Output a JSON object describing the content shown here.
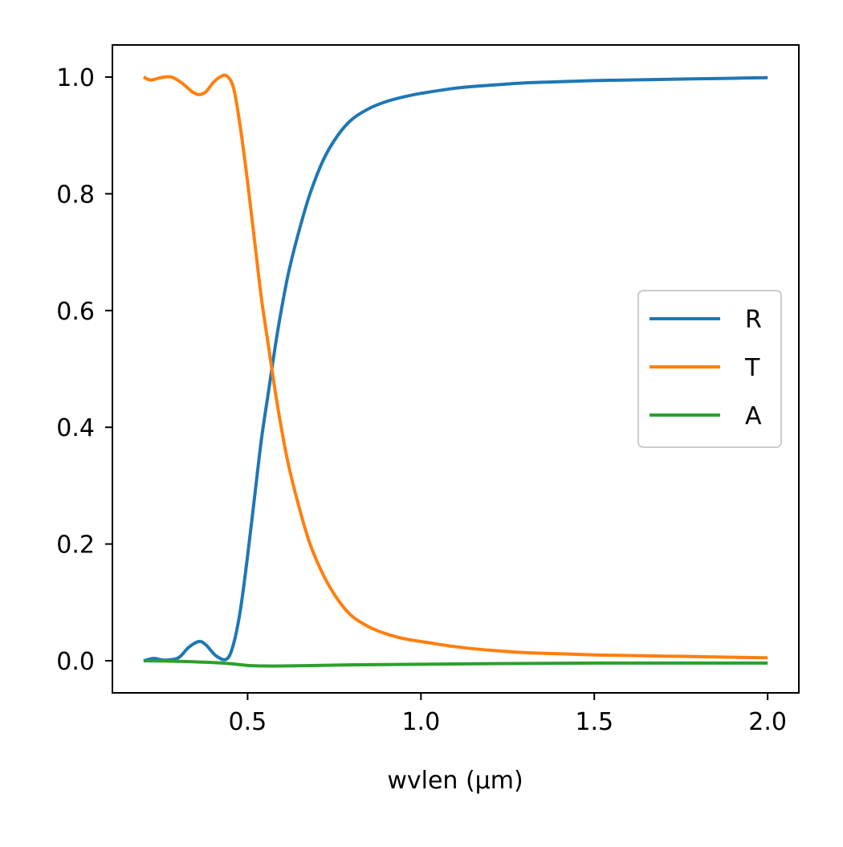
{
  "chart_data": {
    "type": "line",
    "title": "",
    "xlabel": "wvlen (μm)",
    "ylabel": "",
    "xlim": [
      0.11,
      2.09
    ],
    "ylim": [
      -0.055,
      1.055
    ],
    "xticks": [
      0.5,
      1.0,
      1.5,
      2.0
    ],
    "xtick_labels": [
      "0.5",
      "1.0",
      "1.5",
      "2.0"
    ],
    "yticks": [
      0.0,
      0.2,
      0.4,
      0.6,
      0.8,
      1.0
    ],
    "ytick_labels": [
      "0.0",
      "0.2",
      "0.4",
      "0.6",
      "0.8",
      "1.0"
    ],
    "grid": false,
    "legend_position": "center-right",
    "series": [
      {
        "name": "R",
        "color": "#1f77b4",
        "x": [
          0.2,
          0.23,
          0.26,
          0.3,
          0.33,
          0.36,
          0.38,
          0.41,
          0.44,
          0.46,
          0.48,
          0.5,
          0.52,
          0.54,
          0.56,
          0.58,
          0.6,
          0.62,
          0.65,
          0.68,
          0.72,
          0.76,
          0.8,
          0.85,
          0.9,
          0.95,
          1.0,
          1.1,
          1.2,
          1.3,
          1.4,
          1.5,
          1.6,
          1.7,
          1.8,
          1.9,
          2.0
        ],
        "y": [
          0.0,
          0.004,
          0.001,
          0.005,
          0.023,
          0.033,
          0.027,
          0.008,
          0.003,
          0.03,
          0.09,
          0.18,
          0.28,
          0.38,
          0.46,
          0.54,
          0.61,
          0.67,
          0.74,
          0.8,
          0.86,
          0.9,
          0.927,
          0.946,
          0.958,
          0.966,
          0.972,
          0.981,
          0.986,
          0.99,
          0.992,
          0.994,
          0.995,
          0.996,
          0.997,
          0.998,
          0.999
        ]
      },
      {
        "name": "T",
        "color": "#ff7f0e",
        "x": [
          0.2,
          0.22,
          0.25,
          0.28,
          0.31,
          0.34,
          0.36,
          0.38,
          0.4,
          0.42,
          0.44,
          0.46,
          0.48,
          0.5,
          0.52,
          0.54,
          0.56,
          0.58,
          0.6,
          0.62,
          0.65,
          0.68,
          0.72,
          0.76,
          0.8,
          0.85,
          0.9,
          0.95,
          1.0,
          1.1,
          1.2,
          1.3,
          1.4,
          1.5,
          1.6,
          1.7,
          1.8,
          1.9,
          2.0
        ],
        "y": [
          1.0,
          0.995,
          0.999,
          1.0,
          0.99,
          0.975,
          0.97,
          0.975,
          0.99,
          1.0,
          1.002,
          0.98,
          0.91,
          0.82,
          0.72,
          0.62,
          0.54,
          0.46,
          0.39,
          0.33,
          0.26,
          0.2,
          0.145,
          0.105,
          0.077,
          0.058,
          0.046,
          0.038,
          0.033,
          0.024,
          0.018,
          0.014,
          0.012,
          0.01,
          0.009,
          0.008,
          0.007,
          0.006,
          0.005
        ]
      },
      {
        "name": "A",
        "color": "#2ca02c",
        "x": [
          0.2,
          0.3,
          0.4,
          0.45,
          0.5,
          0.55,
          0.6,
          0.7,
          0.8,
          1.0,
          1.2,
          1.5,
          2.0
        ],
        "y": [
          0.0,
          -0.001,
          -0.003,
          -0.005,
          -0.008,
          -0.009,
          -0.009,
          -0.008,
          -0.007,
          -0.006,
          -0.005,
          -0.004,
          -0.004
        ]
      }
    ]
  }
}
